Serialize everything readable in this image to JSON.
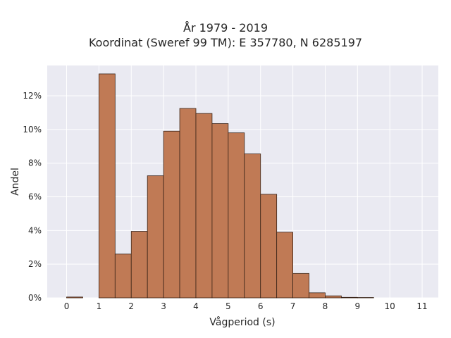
{
  "chart_data": {
    "type": "bar",
    "title": "År 1979 - 2019",
    "subtitle": "Koordinat (Sweref 99 TM): E 357780, N 6285197",
    "xlabel": "Vågperiod (s)",
    "ylabel": "Andel",
    "x_ticks": [
      "0",
      "1",
      "2",
      "3",
      "4",
      "5",
      "6",
      "7",
      "8",
      "9",
      "10",
      "11"
    ],
    "y_ticks": [
      "0%",
      "2%",
      "4%",
      "6%",
      "8%",
      "10%",
      "12%"
    ],
    "xlim": [
      -0.6,
      11.5
    ],
    "ylim": [
      0,
      13.8
    ],
    "grid": true,
    "bar_color": "#c07a55",
    "bar_edge_color": "#3a2418",
    "background_color": "#eaeaf2",
    "bins": [
      {
        "x0": 0.0,
        "x1": 0.5,
        "value": 0.05
      },
      {
        "x0": 1.0,
        "x1": 1.5,
        "value": 13.3
      },
      {
        "x0": 1.5,
        "x1": 2.0,
        "value": 2.6
      },
      {
        "x0": 2.0,
        "x1": 2.5,
        "value": 3.95
      },
      {
        "x0": 2.5,
        "x1": 3.0,
        "value": 7.25
      },
      {
        "x0": 3.0,
        "x1": 3.5,
        "value": 9.9
      },
      {
        "x0": 3.5,
        "x1": 4.0,
        "value": 11.25
      },
      {
        "x0": 4.0,
        "x1": 4.5,
        "value": 10.95
      },
      {
        "x0": 4.5,
        "x1": 5.0,
        "value": 10.35
      },
      {
        "x0": 5.0,
        "x1": 5.5,
        "value": 9.8
      },
      {
        "x0": 5.5,
        "x1": 6.0,
        "value": 8.55
      },
      {
        "x0": 6.0,
        "x1": 6.5,
        "value": 6.15
      },
      {
        "x0": 6.5,
        "x1": 7.0,
        "value": 3.9
      },
      {
        "x0": 7.0,
        "x1": 7.5,
        "value": 1.45
      },
      {
        "x0": 7.5,
        "x1": 8.0,
        "value": 0.3
      },
      {
        "x0": 8.0,
        "x1": 8.5,
        "value": 0.12
      },
      {
        "x0": 8.5,
        "x1": 9.0,
        "value": 0.03
      },
      {
        "x0": 9.0,
        "x1": 9.5,
        "value": 0.02
      }
    ]
  }
}
